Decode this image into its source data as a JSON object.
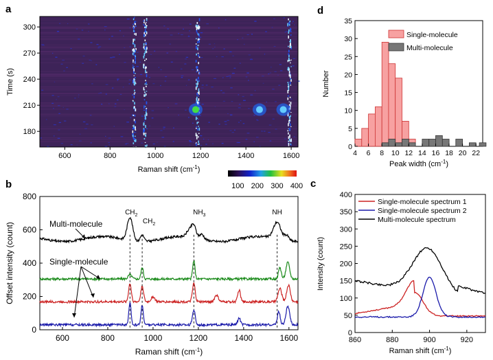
{
  "panels": {
    "a": {
      "letter": "a",
      "ylabel": "Time (s)",
      "xlabel": "Raman shift (cm",
      "xlabel_sup": "-1",
      "xlabel_end": ")",
      "xticks": [
        "600",
        "800",
        "1000",
        "1200",
        "1400",
        "1600"
      ],
      "yticks": [
        "180",
        "210",
        "240",
        "270",
        "300"
      ],
      "colorbar_ticks": [
        "100",
        "200",
        "300",
        "400"
      ]
    },
    "b": {
      "letter": "b",
      "ylabel": "Offset intensity (count)",
      "xlabel": "Raman shift (cm",
      "xlabel_sup": "-1",
      "xlabel_end": ")",
      "xticks": [
        "600",
        "800",
        "1000",
        "1200",
        "1400",
        "1600"
      ],
      "yticks": [
        "0",
        "200",
        "400",
        "600",
        "800"
      ],
      "label_multi": "Multi-molecule",
      "label_single": "Single-molecule",
      "peaks": [
        {
          "label": "CH",
          "sub": "2"
        },
        {
          "label": "CH",
          "sub": "2"
        },
        {
          "label": "NH",
          "sub": "3"
        },
        {
          "label": "NH",
          "sub": ""
        }
      ]
    },
    "c": {
      "letter": "c",
      "ylabel": "Intensity (count)",
      "xlabel": "Raman shift (cm",
      "xlabel_sup": "-1",
      "xlabel_end": ")",
      "xticks": [
        "860",
        "880",
        "900",
        "920"
      ],
      "yticks": [
        "0",
        "50",
        "100",
        "150",
        "200",
        "250",
        "300",
        "350",
        "400"
      ],
      "legend": [
        "Single-molecule spectrum 1",
        "Single-molecule spectrum 2",
        "Multi-molecule spectrum"
      ]
    },
    "d": {
      "letter": "d",
      "ylabel": "Number",
      "xlabel": "Peak width (cm",
      "xlabel_sup": "-1",
      "xlabel_end": ")",
      "xticks": [
        "4",
        "6",
        "8",
        "10",
        "12",
        "14",
        "16",
        "18",
        "20",
        "22"
      ],
      "yticks": [
        "0",
        "5",
        "10",
        "15",
        "20",
        "25",
        "30",
        "35"
      ],
      "legend": [
        "Single-molecule",
        "Multi-molecule"
      ]
    }
  },
  "colors": {
    "black": "#000000",
    "green": "#1a8a1a",
    "red": "#cc2222",
    "blue": "#1a1aaa",
    "single_bar": "#f7a1a1",
    "multi_bar": "#777777",
    "heat_bg": "#3d2358"
  },
  "chart_data": [
    {
      "panel": "a",
      "type": "heatmap",
      "xlabel": "Raman shift (cm-1)",
      "ylabel": "Time (s)",
      "xlim": [
        490,
        1630
      ],
      "ylim": [
        162,
        312
      ],
      "color_range": [
        50,
        400
      ],
      "bright_lines": [
        {
          "x": 905,
          "intensity": 260
        },
        {
          "x": 953,
          "intensity": 330
        },
        {
          "x": 1185,
          "intensity": 340
        },
        {
          "x": 1590,
          "intensity": 330
        }
      ],
      "hotspots": [
        {
          "x": 1178,
          "t": 205,
          "intensity": 400
        },
        {
          "x": 1565,
          "t": 205,
          "intensity": 320
        },
        {
          "x": 1460,
          "t": 205,
          "intensity": 280
        }
      ]
    },
    {
      "panel": "b",
      "type": "line",
      "xlabel": "Raman shift (cm-1)",
      "ylabel": "Offset intensity (count)",
      "xlim": [
        500,
        1640
      ],
      "ylim": [
        0,
        800
      ],
      "peak_positions": [
        898,
        952,
        1180,
        1548
      ],
      "series": [
        {
          "color": "black",
          "baseline": 545,
          "peaks": [
            [
              898,
              140,
              12
            ],
            [
              952,
              40,
              8
            ],
            [
              1160,
              40,
              12
            ],
            [
              1180,
              70,
              10
            ],
            [
              1215,
              30,
              10
            ],
            [
              1548,
              100,
              16
            ],
            [
              1590,
              30,
              10
            ]
          ]
        },
        {
          "color": "green",
          "baseline": 305,
          "peaks": [
            [
              898,
              25,
              8
            ],
            [
              952,
              70,
              5
            ],
            [
              1180,
              110,
              5
            ],
            [
              1560,
              70,
              6
            ],
            [
              1595,
              100,
              8
            ]
          ]
        },
        {
          "color": "red",
          "baseline": 168,
          "peaks": [
            [
              898,
              110,
              6
            ],
            [
              952,
              95,
              6
            ],
            [
              1000,
              30,
              8
            ],
            [
              1180,
              110,
              6
            ],
            [
              1280,
              40,
              8
            ],
            [
              1380,
              70,
              6
            ],
            [
              1560,
              80,
              8
            ],
            [
              1598,
              100,
              8
            ]
          ]
        },
        {
          "color": "blue",
          "baseline": 30,
          "peaks": [
            [
              898,
              130,
              5
            ],
            [
              952,
              120,
              5
            ],
            [
              1180,
              90,
              6
            ],
            [
              1380,
              40,
              6
            ],
            [
              1555,
              80,
              6
            ],
            [
              1595,
              110,
              8
            ]
          ]
        }
      ]
    },
    {
      "panel": "c",
      "type": "line",
      "xlabel": "Raman shift (cm-1)",
      "ylabel": "Intensity (count)",
      "xlim": [
        860,
        930
      ],
      "ylim": [
        0,
        400
      ],
      "series": [
        {
          "name": "Single-molecule spectrum 1",
          "color": "red",
          "peak_x": 892,
          "peak_y": 148,
          "baseline": 48
        },
        {
          "name": "Single-molecule spectrum 2",
          "color": "blue",
          "peak_x": 900,
          "peak_y": 160,
          "baseline": 45
        },
        {
          "name": "Multi-molecule spectrum",
          "color": "black",
          "peak_x": 899,
          "peak_y": 250,
          "baseline": 120
        }
      ]
    },
    {
      "panel": "d",
      "type": "bar",
      "xlabel": "Peak width (cm-1)",
      "ylabel": "Number",
      "xlim": [
        4,
        23
      ],
      "ylim": [
        0,
        35
      ],
      "bin_width": 1,
      "series": [
        {
          "name": "Single-molecule",
          "color": "single",
          "bins": [
            [
              4,
              2
            ],
            [
              5,
              5
            ],
            [
              6,
              9
            ],
            [
              7,
              11
            ],
            [
              8,
              29
            ],
            [
              9,
              23
            ],
            [
              10,
              19
            ],
            [
              11,
              7
            ],
            [
              12,
              2
            ]
          ]
        },
        {
          "name": "Multi-molecule",
          "color": "multi",
          "bins": [
            [
              8,
              1
            ],
            [
              9,
              2
            ],
            [
              10,
              1
            ],
            [
              11,
              2
            ],
            [
              12,
              1
            ],
            [
              14,
              2
            ],
            [
              15,
              2
            ],
            [
              16,
              3
            ],
            [
              17,
              2
            ],
            [
              19,
              2
            ],
            [
              21,
              1
            ],
            [
              22.5,
              1
            ]
          ]
        }
      ]
    }
  ]
}
